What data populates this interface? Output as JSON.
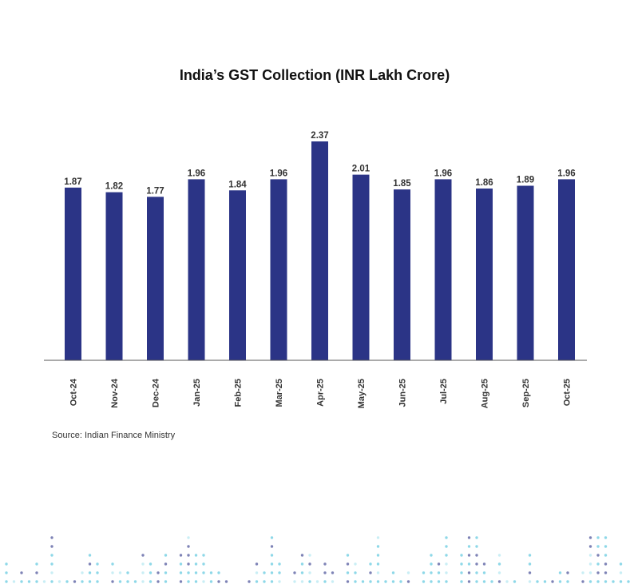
{
  "chart_data": {
    "type": "bar",
    "title": "India’s GST Collection (INR Lakh Crore)",
    "categories": [
      "Oct-24",
      "Nov-24",
      "Dec-24",
      "Jan-25",
      "Feb-25",
      "Mar-25",
      "Apr-25",
      "May-25",
      "Jun-25",
      "Jul-25",
      "Aug-25",
      "Sep-25",
      "Oct-25"
    ],
    "values": [
      1.87,
      1.82,
      1.77,
      1.96,
      1.84,
      1.96,
      2.37,
      2.01,
      1.85,
      1.96,
      1.86,
      1.89,
      1.96
    ],
    "value_labels": [
      "1.87",
      "1.82",
      "1.77",
      "1.96",
      "1.84",
      "1.96",
      "2.37",
      "2.01",
      "1.85",
      "1.96",
      "1.86",
      "1.89",
      "1.96"
    ],
    "xlabel": "",
    "ylabel": "",
    "ylim": [
      0,
      2.4
    ],
    "grid": false,
    "bar_color": "#2B3486"
  },
  "source": "Source: Indian Finance Ministry",
  "decoration_colors": [
    "#8ED8E8",
    "#7E83B6",
    "#C9EEF5"
  ]
}
